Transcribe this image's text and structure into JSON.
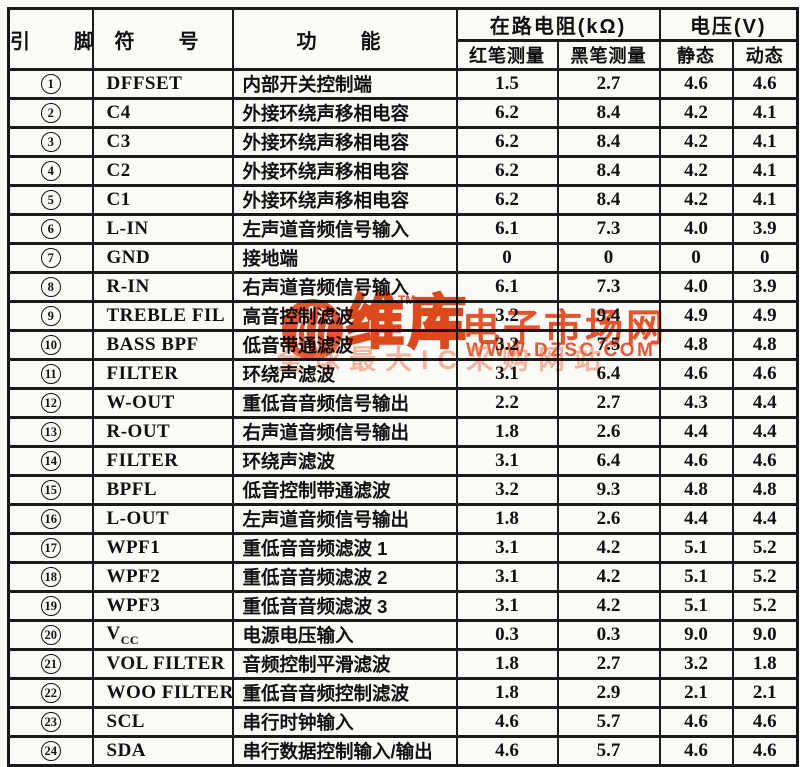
{
  "table": {
    "headers": {
      "pin": "引　脚",
      "symbol": "符　号",
      "function": "功　能",
      "resistance_group": "在路电阻(kΩ)",
      "red_pen": "红笔测量",
      "black_pen": "黑笔测量",
      "voltage_group": "电压(V)",
      "static_v": "静态",
      "dynamic_v": "动态"
    },
    "rows": [
      {
        "pin": "1",
        "symbol": "DFFSET",
        "function": "内部开关控制端",
        "red_pen": "1.5",
        "black_pen": "2.7",
        "static_v": "4.6",
        "dynamic_v": "4.6"
      },
      {
        "pin": "2",
        "symbol": "C4",
        "function": "外接环绕声移相电容",
        "red_pen": "6.2",
        "black_pen": "8.4",
        "static_v": "4.2",
        "dynamic_v": "4.1"
      },
      {
        "pin": "3",
        "symbol": "C3",
        "function": "外接环绕声移相电容",
        "red_pen": "6.2",
        "black_pen": "8.4",
        "static_v": "4.2",
        "dynamic_v": "4.1"
      },
      {
        "pin": "4",
        "symbol": "C2",
        "function": "外接环绕声移相电容",
        "red_pen": "6.2",
        "black_pen": "8.4",
        "static_v": "4.2",
        "dynamic_v": "4.1"
      },
      {
        "pin": "5",
        "symbol": "C1",
        "function": "外接环绕声移相电容",
        "red_pen": "6.2",
        "black_pen": "8.4",
        "static_v": "4.2",
        "dynamic_v": "4.1"
      },
      {
        "pin": "6",
        "symbol": "L-IN",
        "function": "左声道音频信号输入",
        "red_pen": "6.1",
        "black_pen": "7.3",
        "static_v": "4.0",
        "dynamic_v": "3.9"
      },
      {
        "pin": "7",
        "symbol": "GND",
        "function": "接地端",
        "red_pen": "0",
        "black_pen": "0",
        "static_v": "0",
        "dynamic_v": "0"
      },
      {
        "pin": "8",
        "symbol": "R-IN",
        "function": "右声道音频信号输入",
        "red_pen": "6.1",
        "black_pen": "7.3",
        "static_v": "4.0",
        "dynamic_v": "3.9"
      },
      {
        "pin": "9",
        "symbol": "TREBLE FIL",
        "function": "高音控制滤波",
        "red_pen": "3.2",
        "black_pen": "9.4",
        "static_v": "4.9",
        "dynamic_v": "4.9"
      },
      {
        "pin": "10",
        "symbol": "BASS BPF",
        "function": "低音带通滤波",
        "red_pen": "3.2",
        "black_pen": "7.5",
        "static_v": "4.8",
        "dynamic_v": "4.8"
      },
      {
        "pin": "11",
        "symbol": "FILTER",
        "function": "环绕声滤波",
        "red_pen": "3.1",
        "black_pen": "6.4",
        "static_v": "4.6",
        "dynamic_v": "4.6"
      },
      {
        "pin": "12",
        "symbol": "W-OUT",
        "function": "重低音音频信号输出",
        "red_pen": "2.2",
        "black_pen": "2.7",
        "static_v": "4.3",
        "dynamic_v": "4.4"
      },
      {
        "pin": "13",
        "symbol": "R-OUT",
        "function": "右声道音频信号输出",
        "red_pen": "1.8",
        "black_pen": "2.6",
        "static_v": "4.4",
        "dynamic_v": "4.4"
      },
      {
        "pin": "14",
        "symbol": "FILTER",
        "function": "环绕声滤波",
        "red_pen": "3.1",
        "black_pen": "6.4",
        "static_v": "4.6",
        "dynamic_v": "4.6"
      },
      {
        "pin": "15",
        "symbol": "BPFL",
        "function": "低音控制带通滤波",
        "red_pen": "3.2",
        "black_pen": "9.3",
        "static_v": "4.8",
        "dynamic_v": "4.8"
      },
      {
        "pin": "16",
        "symbol": "L-OUT",
        "function": "左声道音频信号输出",
        "red_pen": "1.8",
        "black_pen": "2.6",
        "static_v": "4.4",
        "dynamic_v": "4.4"
      },
      {
        "pin": "17",
        "symbol": "WPF1",
        "function": "重低音音频滤波 1",
        "red_pen": "3.1",
        "black_pen": "4.2",
        "static_v": "5.1",
        "dynamic_v": "5.2"
      },
      {
        "pin": "18",
        "symbol": "WPF2",
        "function": "重低音音频滤波 2",
        "red_pen": "3.1",
        "black_pen": "4.2",
        "static_v": "5.1",
        "dynamic_v": "5.2"
      },
      {
        "pin": "19",
        "symbol": "WPF3",
        "function": "重低音音频滤波 3",
        "red_pen": "3.1",
        "black_pen": "4.2",
        "static_v": "5.1",
        "dynamic_v": "5.2"
      },
      {
        "pin": "20",
        "symbol": "V",
        "symbol_sub": "CC",
        "function": "电源电压输入",
        "red_pen": "0.3",
        "black_pen": "0.3",
        "static_v": "9.0",
        "dynamic_v": "9.0"
      },
      {
        "pin": "21",
        "symbol": "VOL FILTER",
        "function": "音频控制平滑滤波",
        "red_pen": "1.8",
        "black_pen": "2.7",
        "static_v": "3.2",
        "dynamic_v": "1.8"
      },
      {
        "pin": "22",
        "symbol": "WOO FILTER",
        "function": "重低音音频控制滤波",
        "red_pen": "1.8",
        "black_pen": "2.9",
        "static_v": "2.1",
        "dynamic_v": "2.1"
      },
      {
        "pin": "23",
        "symbol": "SCL",
        "function": "串行时钟输入",
        "red_pen": "4.6",
        "black_pen": "5.7",
        "static_v": "4.6",
        "dynamic_v": "4.6"
      },
      {
        "pin": "24",
        "symbol": "SDA",
        "function": "串行数据控制输入/输出",
        "red_pen": "4.6",
        "black_pen": "5.7",
        "static_v": "4.6",
        "dynamic_v": "4.6"
      }
    ]
  },
  "watermark": {
    "brand": "维库",
    "tm": "TM",
    "site_name": "电子市场网",
    "url": "WWW.DZSC.COM",
    "tagline": "全球最大IC采购网站",
    "accent_color": "#e8491e"
  }
}
